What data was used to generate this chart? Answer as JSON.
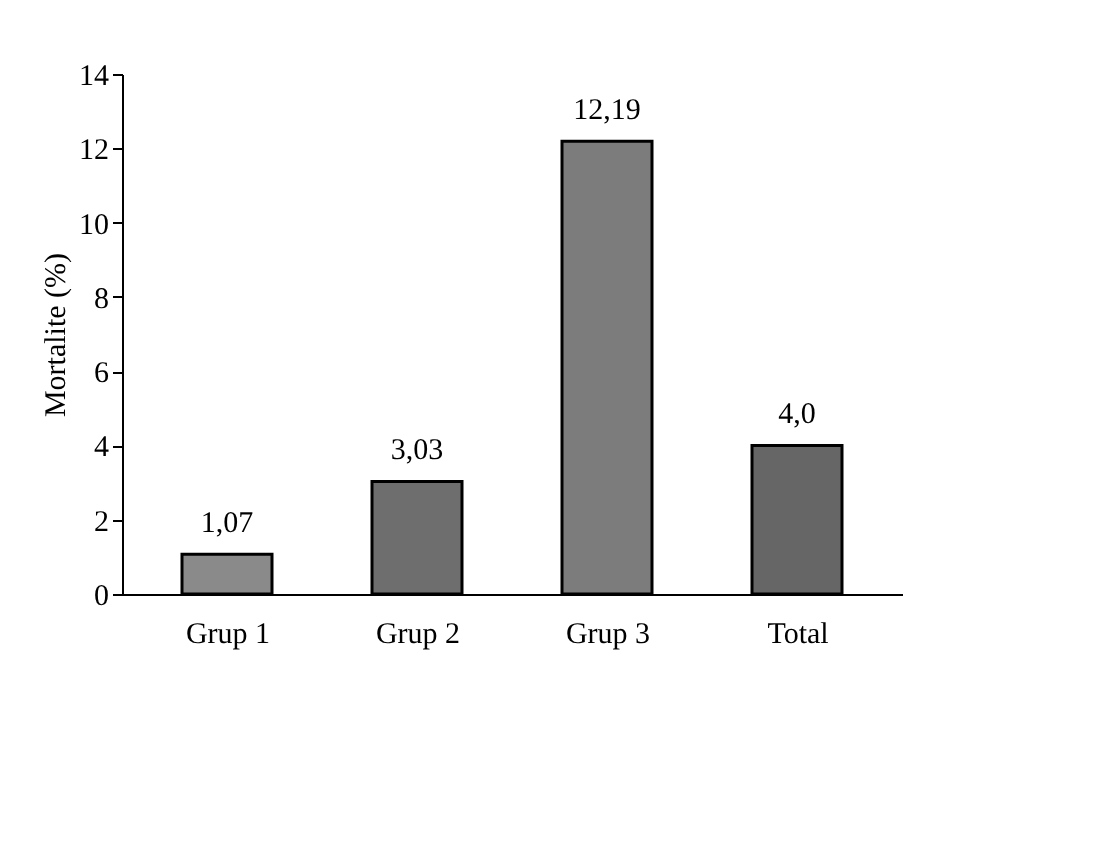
{
  "chart_data": {
    "type": "bar",
    "ylabel": "Mortalite (%)",
    "categories": [
      "Grup 1",
      "Grup 2",
      "Grup 3",
      "Total"
    ],
    "values": [
      1.07,
      3.03,
      12.19,
      4.0
    ],
    "value_labels": [
      "1,07",
      "3,03",
      "12,19",
      "4,0"
    ],
    "colors": [
      "#8a8a8a",
      "#6e6e6e",
      "#7c7c7c",
      "#666666"
    ],
    "ylim": [
      0,
      14
    ],
    "yticks": [
      0,
      2,
      4,
      6,
      8,
      10,
      12,
      14
    ],
    "grid": false
  }
}
